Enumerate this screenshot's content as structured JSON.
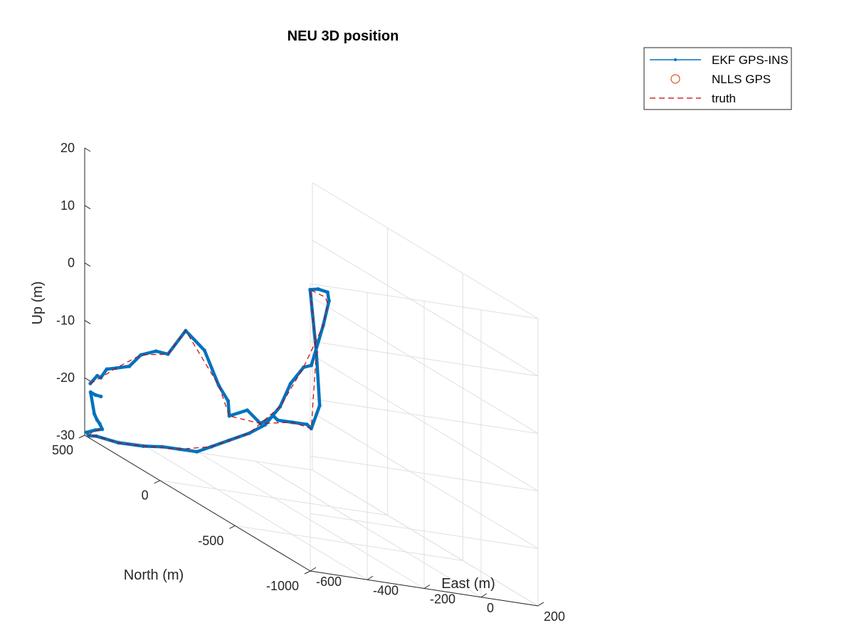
{
  "chart_data": {
    "type": "line",
    "title": "NEU 3D position",
    "xlabel": "East (m)",
    "ylabel": "North (m)",
    "zlabel": "Up (m)",
    "xlim": [
      -600,
      200
    ],
    "ylim": [
      -1000,
      500
    ],
    "zlim": [
      -30,
      20
    ],
    "xticks": [
      "-600",
      "-400",
      "-200",
      "0",
      "200"
    ],
    "yticks": [
      "500",
      "0",
      "-500",
      "-1000"
    ],
    "zticks": [
      "20",
      "10",
      "0",
      "-10",
      "-20",
      "-30"
    ],
    "grid": true,
    "legend_position": "top-right",
    "legend": [
      "EKF GPS-INS",
      "NLLS GPS",
      "truth"
    ],
    "colors": {
      "ekf": "#0072BD",
      "nlls": "#D95319",
      "truth": "#CC0000",
      "grid": "#DFDFDF",
      "axis": "#262626"
    },
    "series": [
      {
        "name": "EKF GPS-INS",
        "style": "solid line with point markers",
        "points": [
          [
            -596,
            470,
            -20.5
          ],
          [
            -593,
            430,
            -18.5
          ],
          [
            -591,
            410,
            -18.5
          ],
          [
            -586,
            380,
            -16.5
          ],
          [
            -580,
            330,
            -15.5
          ],
          [
            -570,
            260,
            -14.0
          ],
          [
            -561,
            200,
            -11.0
          ],
          [
            -550,
            120,
            -9.0
          ],
          [
            -540,
            60,
            -8.5
          ],
          [
            -520,
            -20,
            -3.0
          ],
          [
            -496,
            -100,
            -5.0
          ],
          [
            -478,
            -160,
            -10.0
          ],
          [
            -466,
            -200,
            -12.0
          ],
          [
            -465,
            -206,
            -14.5
          ],
          [
            -425,
            -250,
            -12.5
          ],
          [
            -400,
            -290,
            -14.0
          ],
          [
            -370,
            -320,
            -12.0
          ],
          [
            -360,
            -330,
            -12.5
          ],
          [
            -330,
            -370,
            -12.0
          ],
          [
            -300,
            -410,
            -11.5
          ],
          [
            -290,
            -420,
            -12.0
          ],
          [
            -250,
            -400,
            -8.0
          ],
          [
            -230,
            -340,
            0.5
          ],
          [
            -220,
            -280,
            10.5
          ],
          [
            -200,
            -295,
            11.0
          ],
          [
            -180,
            -320,
            11.0
          ],
          [
            -175,
            -320,
            9.5
          ],
          [
            -190,
            -310,
            5.0
          ],
          [
            -200,
            -250,
            -3.0
          ],
          [
            -206,
            -210,
            -4.0
          ],
          [
            -215,
            -140,
            -8.0
          ],
          [
            -220,
            -80,
            -13.0
          ],
          [
            -230,
            0,
            -17.5
          ],
          [
            -260,
            50,
            -20.0
          ],
          [
            -300,
            110,
            -22.5
          ],
          [
            -340,
            150,
            -24.5
          ],
          [
            -380,
            170,
            -26.0
          ],
          [
            -420,
            210,
            -26.5
          ],
          [
            -460,
            250,
            -27.0
          ],
          [
            -500,
            300,
            -28.0
          ],
          [
            -545,
            380,
            -29.0
          ],
          [
            -575,
            470,
            -29.5
          ],
          [
            -585,
            500,
            -30.0
          ],
          [
            -590,
            505,
            -29.5
          ],
          [
            -580,
            470,
            -28.5
          ],
          [
            -570,
            440,
            -27.8
          ],
          [
            -574,
            450,
            -27.0
          ],
          [
            -580,
            455,
            -26.5
          ],
          [
            -590,
            455,
            -25.5
          ],
          [
            -595,
            470,
            -22.0
          ],
          [
            -594,
            440,
            -22.0
          ],
          [
            -580,
            430,
            -22.0
          ]
        ]
      },
      {
        "name": "truth",
        "style": "red dashed line",
        "points": [
          [
            -596,
            470,
            -20.5
          ],
          [
            -591,
            410,
            -18.5
          ],
          [
            -580,
            330,
            -15.5
          ],
          [
            -561,
            200,
            -11.0
          ],
          [
            -540,
            60,
            -8.5
          ],
          [
            -520,
            -20,
            -3.0
          ],
          [
            -478,
            -160,
            -10.0
          ],
          [
            -465,
            -206,
            -14.5
          ],
          [
            -400,
            -290,
            -14.0
          ],
          [
            -330,
            -370,
            -12.0
          ],
          [
            -290,
            -420,
            -12.0
          ],
          [
            -230,
            -340,
            0.5
          ],
          [
            -220,
            -280,
            10.5
          ],
          [
            -185,
            -315,
            10.0
          ],
          [
            -180,
            -320,
            9.0
          ],
          [
            -190,
            -310,
            5.0
          ],
          [
            -206,
            -210,
            -4.0
          ],
          [
            -220,
            -80,
            -13.0
          ],
          [
            -260,
            50,
            -20.0
          ],
          [
            -340,
            150,
            -24.5
          ],
          [
            -420,
            210,
            -26.5
          ],
          [
            -500,
            300,
            -28.0
          ],
          [
            -545,
            380,
            -29.0
          ],
          [
            -575,
            470,
            -29.5
          ],
          [
            -585,
            500,
            -30.0
          ],
          [
            -585,
            475,
            -28.8
          ],
          [
            -570,
            440,
            -27.8
          ]
        ]
      }
    ]
  }
}
